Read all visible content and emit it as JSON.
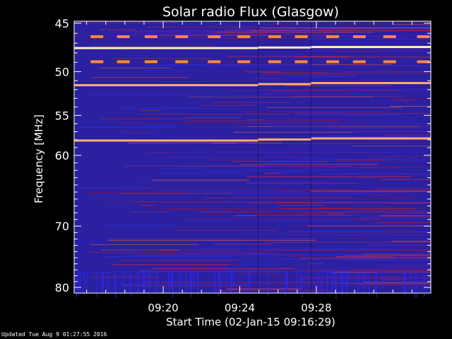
{
  "chart_data": {
    "type": "heatmap",
    "title": "Solar radio Flux (Glasgow)",
    "xlabel": "Start Time (02-Jan-15 09:16:29)",
    "ylabel": "Frequency [MHz]",
    "x_start_minutes": 9.275,
    "x_end_minutes": 33.983,
    "xlim_minutes_after_0900": [
      15.35,
      33.98
    ],
    "x_tick_values_min_after_0900": [
      20,
      24,
      28
    ],
    "x_tick_labels": [
      "09:20",
      "09:24",
      "09:28"
    ],
    "ylim": [
      44.8,
      81.0
    ],
    "y_tick_values": [
      45,
      50,
      55,
      60,
      70,
      80
    ],
    "y_tick_labels": [
      "45",
      "50",
      "55",
      "60",
      "70",
      "80"
    ],
    "y_scale": "log",
    "segment_boundaries_min_after_0900": [
      24.96,
      27.72
    ],
    "bright_lines_mhz": [
      47.5,
      51.5,
      58.1
    ],
    "colormap": [
      "#000000",
      "#0a0a8c",
      "#2a2aff",
      "#7a2ad6",
      "#c8141e",
      "#ff2a10",
      "#ff8a3a",
      "#ffe0a0"
    ],
    "grid": false
  },
  "footer": {
    "updated": "Updated Tue Aug  9 01:27:55 2016"
  },
  "colors": {
    "background": "#000000",
    "axes": "#ffffff"
  }
}
